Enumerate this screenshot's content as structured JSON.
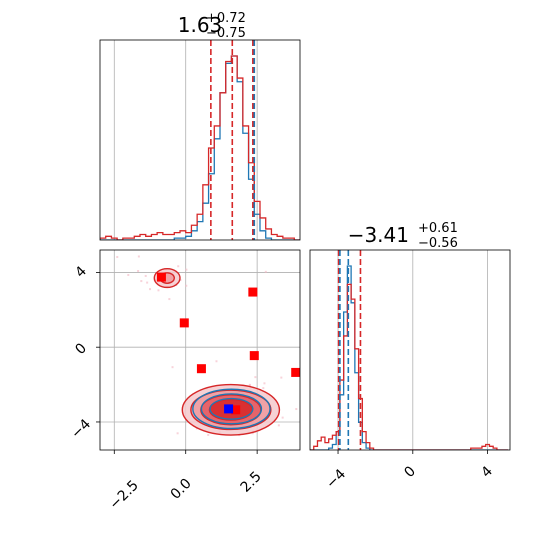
{
  "chart_data": [
    {
      "type": "histogram",
      "panel": "marginal-x",
      "title": {
        "median": "1.63",
        "plus": "+0.72",
        "minus": "−0.75"
      },
      "xlim": [
        -3.0,
        4.0
      ],
      "bin_centers": [
        -2.9,
        -2.7,
        -2.5,
        -2.3,
        -2.1,
        -1.9,
        -1.7,
        -1.5,
        -1.3,
        -1.1,
        -0.9,
        -0.7,
        -0.5,
        -0.3,
        -0.1,
        0.1,
        0.3,
        0.5,
        0.7,
        0.9,
        1.1,
        1.3,
        1.5,
        1.7,
        1.9,
        2.1,
        2.3,
        2.5,
        2.7,
        2.9,
        3.1,
        3.3,
        3.5,
        3.7,
        3.9
      ],
      "series": [
        {
          "name": "",
          "color": "#1f77b4",
          "values": [
            0,
            0,
            0,
            0,
            0,
            0,
            0,
            0,
            0,
            0,
            0,
            0,
            0,
            0.01,
            0.01,
            0.02,
            0.05,
            0.1,
            0.2,
            0.36,
            0.55,
            0.8,
            0.96,
            1.0,
            0.86,
            0.58,
            0.33,
            0.14,
            0.05,
            0.01,
            0,
            0,
            0,
            0,
            0
          ]
        },
        {
          "name": "",
          "color": "#d62728",
          "values": [
            0.01,
            0.02,
            0.01,
            0,
            0.01,
            0.01,
            0.02,
            0.03,
            0.02,
            0.03,
            0.04,
            0.03,
            0.03,
            0.04,
            0.05,
            0.04,
            0.08,
            0.14,
            0.3,
            0.5,
            0.62,
            0.8,
            0.97,
            1.0,
            0.88,
            0.62,
            0.42,
            0.21,
            0.12,
            0.06,
            0.03,
            0.02,
            0.01,
            0.01,
            0
          ]
        }
      ],
      "quantile_lines": [
        {
          "color": "#d62728",
          "x": [
            0.88,
            1.63,
            2.35
          ]
        },
        {
          "color": "#1f77b4",
          "x": [
            2.4
          ]
        }
      ]
    },
    {
      "type": "scatter",
      "panel": "joint",
      "xlim": [
        -3.0,
        4.0
      ],
      "ylim": [
        -5.5,
        5.2
      ],
      "xticks": [
        "−2.5",
        "0.0",
        "2.5"
      ],
      "yticks": [
        "−4",
        "0",
        "4"
      ],
      "markers": [
        {
          "color": "#ff0000",
          "shape": "square",
          "points": [
            [
              -0.85,
              3.75
            ],
            [
              -0.05,
              1.3
            ],
            [
              2.35,
              2.95
            ],
            [
              0.55,
              -1.15
            ],
            [
              2.4,
              -0.45
            ],
            [
              3.85,
              -1.35
            ],
            [
              1.75,
              -3.35
            ]
          ]
        },
        {
          "color": "#0000ff",
          "shape": "square",
          "points": [
            [
              1.5,
              -3.3
            ]
          ]
        }
      ],
      "contours": [
        {
          "color": "#d62728",
          "center": [
            1.58,
            -3.35
          ],
          "levels": [
            [
              1.7,
              1.35
            ],
            [
              1.4,
              1.05
            ],
            [
              1.05,
              0.8
            ],
            [
              0.75,
              0.55
            ]
          ]
        },
        {
          "color": "#1f77b4",
          "center": [
            1.6,
            -3.3
          ],
          "levels": [
            [
              1.35,
              1.05
            ],
            [
              1.05,
              0.8
            ],
            [
              0.75,
              0.55
            ]
          ]
        },
        {
          "color": "#d62728",
          "center": [
            -0.65,
            3.7
          ],
          "levels": [
            [
              0.45,
              0.5
            ],
            [
              0.25,
              0.28
            ]
          ]
        }
      ]
    },
    {
      "type": "histogram",
      "panel": "marginal-y",
      "title": {
        "median": "−3.41",
        "plus": "+0.61",
        "minus": "−0.56"
      },
      "xlim": [
        -5.5,
        5.2
      ],
      "xticks": [
        "−4",
        "0",
        "4"
      ],
      "bin_centers": [
        -5.4,
        -5.2,
        -5.0,
        -4.8,
        -4.6,
        -4.4,
        -4.2,
        -4.0,
        -3.8,
        -3.6,
        -3.4,
        -3.2,
        -3.0,
        -2.8,
        -2.6,
        -2.4,
        -2.2,
        -2.0,
        -1.8,
        -1.6,
        -1.4,
        -1.2,
        -1.0,
        -0.8,
        -0.6,
        -0.4,
        -0.2,
        0.0,
        0.2,
        0.4,
        0.6,
        0.8,
        1.0,
        1.2,
        1.4,
        1.6,
        1.8,
        2.0,
        2.2,
        2.4,
        2.6,
        2.8,
        3.0,
        3.2,
        3.4,
        3.6,
        3.8,
        4.0,
        4.2,
        4.4,
        4.6,
        4.8,
        5.0
      ],
      "series": [
        {
          "name": "",
          "color": "#1f77b4",
          "values": [
            0,
            0,
            0,
            0,
            0,
            0.01,
            0.03,
            0.1,
            0.3,
            0.75,
            1.0,
            0.8,
            0.42,
            0.15,
            0.04,
            0.01,
            0,
            0,
            0,
            0,
            0,
            0,
            0,
            0,
            0,
            0,
            0,
            0,
            0,
            0,
            0,
            0,
            0,
            0,
            0,
            0,
            0,
            0,
            0,
            0,
            0,
            0,
            0,
            0,
            0,
            0,
            0,
            0,
            0,
            0,
            0,
            0,
            0
          ]
        },
        {
          "name": "",
          "color": "#d62728",
          "values": [
            0,
            0.02,
            0.05,
            0.07,
            0.04,
            0.06,
            0.08,
            0.1,
            0.38,
            0.62,
            0.9,
            0.82,
            0.55,
            0.28,
            0.1,
            0.04,
            0.01,
            0,
            0,
            0,
            0,
            0,
            0,
            0,
            0,
            0,
            0,
            0,
            0,
            0,
            0,
            0,
            0,
            0,
            0,
            0,
            0,
            0,
            0,
            0,
            0,
            0,
            0,
            0.01,
            0.01,
            0.01,
            0.02,
            0.03,
            0.02,
            0.01,
            0,
            0,
            0
          ]
        }
      ],
      "quantile_lines": [
        {
          "color": "#d62728",
          "x": [
            -3.97,
            -2.8
          ]
        },
        {
          "color": "#1f77b4",
          "x": [
            -3.9,
            -3.45
          ]
        }
      ]
    }
  ]
}
